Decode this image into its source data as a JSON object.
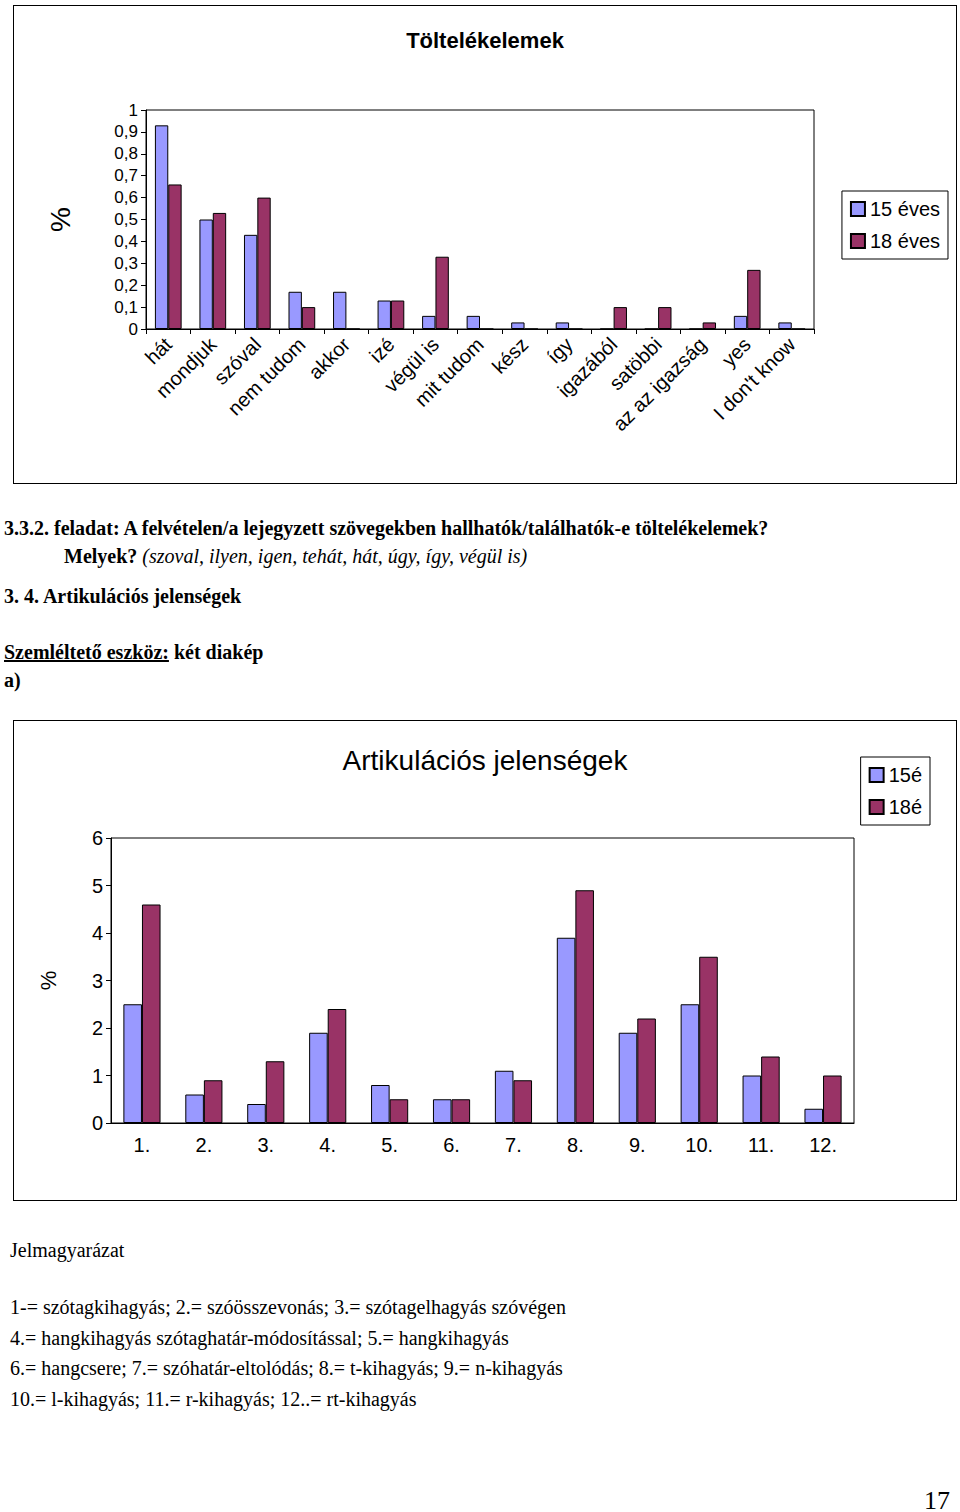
{
  "chart_data": [
    {
      "type": "bar",
      "title": "Töltelékelemek",
      "y_label": "%",
      "categories": [
        "hát",
        "mondjuk",
        "szóval",
        "nem tudom",
        "akkor",
        "izé",
        "végül is",
        "mit tudom",
        "kész",
        "így",
        "igazából",
        "satöbbi",
        "az az igazság",
        "yes",
        "I don't know"
      ],
      "series": [
        {
          "name": "15 éves",
          "color": "#9999ff",
          "values": [
            0.93,
            0.5,
            0.43,
            0.17,
            0.17,
            0.13,
            0.06,
            0.06,
            0.03,
            0.03,
            0,
            0,
            0,
            0.06,
            0.03
          ]
        },
        {
          "name": "18 éves",
          "color": "#993366",
          "values": [
            0.66,
            0.53,
            0.6,
            0.1,
            0,
            0.13,
            0.33,
            0,
            0,
            0,
            0.1,
            0.1,
            0.03,
            0.27,
            0
          ]
        }
      ],
      "ylim": [
        0,
        1
      ],
      "yticks": [
        0,
        {
          "value": 0.1,
          "label": "0,1"
        },
        {
          "value": 0.2,
          "label": "0,2"
        },
        {
          "value": 0.3,
          "label": "0,3"
        },
        {
          "value": 0.4,
          "label": "0,4"
        },
        {
          "value": 0.5,
          "label": "0,5"
        },
        {
          "value": 0.6,
          "label": "0,6"
        },
        {
          "value": 0.7,
          "label": "0,7"
        },
        {
          "value": 0.8,
          "label": "0,8"
        },
        {
          "value": 0.9,
          "label": "0,9"
        },
        1
      ],
      "grid": false,
      "legend": "right"
    },
    {
      "type": "bar",
      "title": "Artikulációs jelenségek",
      "y_label": "%",
      "categories": [
        "1.",
        "2.",
        "3.",
        "4.",
        "5.",
        "6.",
        "7.",
        "8.",
        "9.",
        "10.",
        "11.",
        "12."
      ],
      "series": [
        {
          "name": "15é",
          "color": "#9999ff",
          "values": [
            2.5,
            0.6,
            0.4,
            1.9,
            0.8,
            0.5,
            1.1,
            3.9,
            1.9,
            2.5,
            1.0,
            0.3
          ]
        },
        {
          "name": "18é",
          "color": "#993366",
          "values": [
            4.6,
            0.9,
            1.3,
            2.4,
            0.5,
            0.5,
            0.9,
            4.9,
            2.2,
            3.5,
            1.4,
            1.0
          ]
        }
      ],
      "ylim": [
        0,
        6
      ],
      "yticks": [
        0,
        1,
        2,
        3,
        4,
        5,
        6
      ],
      "grid": false,
      "legend": "top right"
    }
  ],
  "document": {
    "task": {
      "heading": "3.3.2. feladat: A felvételen/a lejegyzett szövegekben hallhatók/találhatók-e töltelékelemek?",
      "question": "Melyek?",
      "answer": "(szoval, ilyen, igen, tehát, hát, úgy, így, végül is)"
    },
    "section": "3. 4. Artikulációs jelenségek",
    "aid": {
      "label": "Szemléltető eszköz:",
      "text": "két diakép"
    },
    "item": "a)",
    "legend_title": "Jelmagyarázat",
    "legend_lines": [
      "1-= szótagkihagyás; 2.= szóösszevonás; 3.= szótagelhagyás szóvégen",
      "4.= hangkihagyás szótaghatár-módosítással; 5.= hangkihagyás",
      "6.= hangcsere; 7.= szóhatár-eltolódás; 8.= t-kihagyás; 9.= n-kihagyás",
      "10.= l-kihagyás; 11.= r-kihagyás; 12..= rt-kihagyás"
    ],
    "page_number": "17"
  }
}
